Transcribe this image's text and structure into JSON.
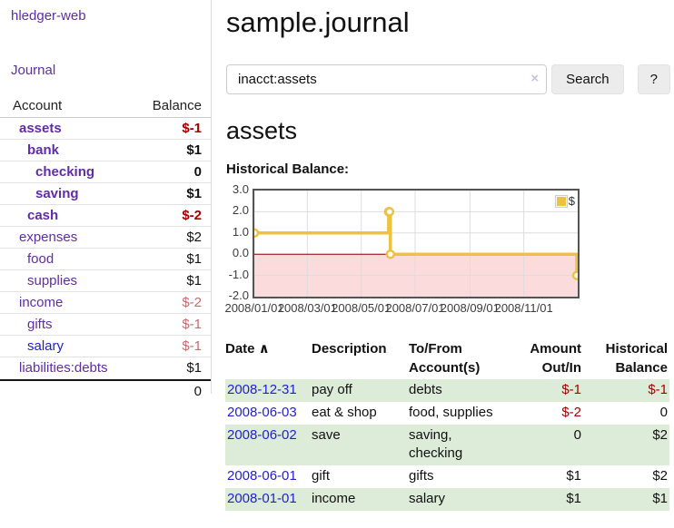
{
  "app": {
    "brand": "hledger-web",
    "nav_journal": "Journal"
  },
  "colors": {
    "accent_purple": "#5f2da5",
    "link_blue": "#2222cc",
    "negative": "#a40000",
    "negative_muted": "#c56b6b",
    "row_stripe_green": "#ddebd9",
    "chart_line_gold": "#edc240",
    "negative_region_pink": "#fbdbdb",
    "zero_line_red": "#8b0000"
  },
  "sidebar": {
    "header": {
      "account": "Account",
      "balance": "Balance"
    },
    "accounts": [
      {
        "name": "assets",
        "balance": "$-1",
        "level": 1,
        "bold": true,
        "neg": "strong"
      },
      {
        "name": "bank",
        "balance": "$1",
        "level": 2,
        "bold": true,
        "neg": "none"
      },
      {
        "name": "checking",
        "balance": "0",
        "level": 3,
        "bold": true,
        "neg": "none"
      },
      {
        "name": "saving",
        "balance": "$1",
        "level": 3,
        "bold": true,
        "neg": "none"
      },
      {
        "name": "cash",
        "balance": "$-2",
        "level": 2,
        "bold": true,
        "neg": "strong"
      },
      {
        "name": "expenses",
        "balance": "$2",
        "level": 1,
        "bold": false,
        "neg": "none"
      },
      {
        "name": "food",
        "balance": "$1",
        "level": 2,
        "bold": false,
        "neg": "none"
      },
      {
        "name": "supplies",
        "balance": "$1",
        "level": 2,
        "bold": false,
        "neg": "none"
      },
      {
        "name": "income",
        "balance": "$-2",
        "level": 1,
        "bold": false,
        "neg": "muted"
      },
      {
        "name": "gifts",
        "balance": "$-1",
        "level": 2,
        "bold": false,
        "neg": "muted"
      },
      {
        "name": "salary",
        "balance": "$-1",
        "level": 2,
        "bold": false,
        "neg": "muted",
        "link_color": "blue"
      },
      {
        "name": "liabilities:debts",
        "balance": "$1",
        "level": 1,
        "bold": false,
        "neg": "none"
      }
    ],
    "total": "0"
  },
  "header": {
    "title": "sample.journal"
  },
  "search": {
    "value": "inacct:assets",
    "clear_icon": "×",
    "button": "Search",
    "help_button": "?"
  },
  "account_page": {
    "heading": "assets",
    "chart_label": "Historical Balance:"
  },
  "chart_data": {
    "type": "line",
    "title": "Historical Balance:",
    "legend": "$",
    "legend_position": "top-right",
    "grid": true,
    "steps": true,
    "xlim": [
      "2008-01-01",
      "2009-01-01"
    ],
    "ylim": [
      -2,
      3
    ],
    "yticks": [
      {
        "label": "3.0",
        "v": 3
      },
      {
        "label": "2.0",
        "v": 2
      },
      {
        "label": "1.0",
        "v": 1
      },
      {
        "label": "0.0",
        "v": 0
      },
      {
        "label": "-1.0",
        "v": -1
      },
      {
        "label": "-2.0",
        "v": -2
      }
    ],
    "xticks": [
      {
        "label": "2008/01/01",
        "date": "2008-01-01"
      },
      {
        "label": "2008/03/01",
        "date": "2008-03-01"
      },
      {
        "label": "2008/05/01",
        "date": "2008-05-01"
      },
      {
        "label": "2008/07/01",
        "date": "2008-07-01"
      },
      {
        "label": "2008/09/01",
        "date": "2008-09-01"
      },
      {
        "label": "2008/11/01",
        "date": "2008-11-01"
      }
    ],
    "series": [
      {
        "name": "$",
        "color": "#edc240",
        "points": [
          {
            "date": "2008-01-01",
            "value": 1
          },
          {
            "date": "2008-06-01",
            "value": 2
          },
          {
            "date": "2008-06-02",
            "value": 2
          },
          {
            "date": "2008-06-03",
            "value": 0
          },
          {
            "date": "2008-12-31",
            "value": -1
          }
        ]
      }
    ]
  },
  "register": {
    "headers": [
      {
        "l1": "Date",
        "l2": "",
        "align": "left",
        "sort": "∧"
      },
      {
        "l1": "Description",
        "l2": "",
        "align": "left"
      },
      {
        "l1": "To/From",
        "l2": "Account(s)",
        "align": "left"
      },
      {
        "l1": "Amount",
        "l2": "Out/In",
        "align": "right"
      },
      {
        "l1": "Historical",
        "l2": "Balance",
        "align": "right"
      }
    ],
    "rows": [
      {
        "date": "2008-12-31",
        "description": "pay off",
        "accounts": "debts",
        "amount": "$-1",
        "amount_neg": true,
        "balance": "$-1",
        "balance_neg": true,
        "striped": true
      },
      {
        "date": "2008-06-03",
        "description": "eat & shop",
        "accounts": "food, supplies",
        "amount": "$-2",
        "amount_neg": true,
        "balance": "0",
        "balance_neg": false,
        "striped": false
      },
      {
        "date": "2008-06-02",
        "description": "save",
        "accounts": "saving, checking",
        "amount": "0",
        "amount_neg": false,
        "balance": "$2",
        "balance_neg": false,
        "striped": true
      },
      {
        "date": "2008-06-01",
        "description": "gift",
        "accounts": "gifts",
        "amount": "$1",
        "amount_neg": false,
        "balance": "$2",
        "balance_neg": false,
        "striped": false
      },
      {
        "date": "2008-01-01",
        "description": "income",
        "accounts": "salary",
        "amount": "$1",
        "amount_neg": false,
        "balance": "$1",
        "balance_neg": false,
        "striped": true
      }
    ]
  }
}
